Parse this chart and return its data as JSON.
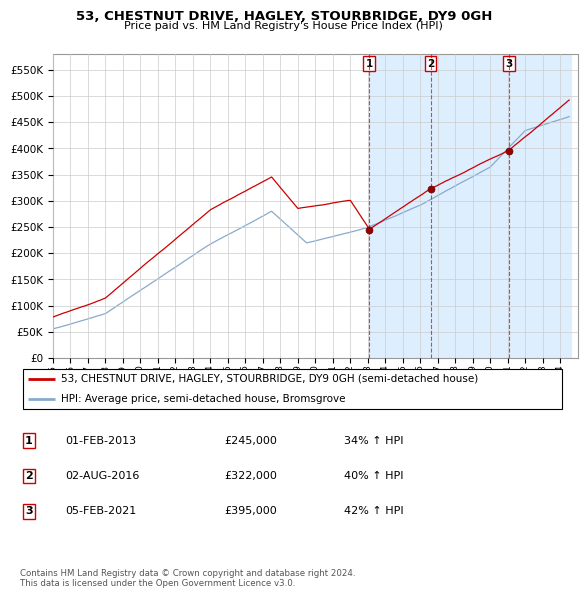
{
  "title": "53, CHESTNUT DRIVE, HAGLEY, STOURBRIDGE, DY9 0GH",
  "subtitle": "Price paid vs. HM Land Registry's House Price Index (HPI)",
  "ylim": [
    0,
    580000
  ],
  "yticks": [
    0,
    50000,
    100000,
    150000,
    200000,
    250000,
    300000,
    350000,
    400000,
    450000,
    500000,
    550000
  ],
  "house_color": "#cc0000",
  "hpi_color": "#88aacc",
  "sale_marker_color": "#990000",
  "dashed_line_color": "#cc0000",
  "shade_color": "#ddeeff",
  "purchase_years": [
    2013.083,
    2016.583,
    2021.083
  ],
  "purchase_prices": [
    245000,
    322000,
    395000
  ],
  "purchase_labels": [
    "1",
    "2",
    "3"
  ],
  "legend_house": "53, CHESTNUT DRIVE, HAGLEY, STOURBRIDGE, DY9 0GH (semi-detached house)",
  "legend_hpi": "HPI: Average price, semi-detached house, Bromsgrove",
  "table_rows": [
    [
      "1",
      "01-FEB-2013",
      "£245,000",
      "34% ↑ HPI"
    ],
    [
      "2",
      "02-AUG-2016",
      "£322,000",
      "40% ↑ HPI"
    ],
    [
      "3",
      "05-FEB-2021",
      "£395,000",
      "42% ↑ HPI"
    ]
  ],
  "footer": "Contains HM Land Registry data © Crown copyright and database right 2024.\nThis data is licensed under the Open Government Licence v3.0.",
  "grid_color": "#cccccc",
  "xlim": [
    1995,
    2025
  ],
  "xticks": [
    1995,
    1996,
    1997,
    1998,
    1999,
    2000,
    2001,
    2002,
    2003,
    2004,
    2005,
    2006,
    2007,
    2008,
    2009,
    2010,
    2011,
    2012,
    2013,
    2014,
    2015,
    2016,
    2017,
    2018,
    2019,
    2020,
    2021,
    2022,
    2023,
    2024
  ]
}
